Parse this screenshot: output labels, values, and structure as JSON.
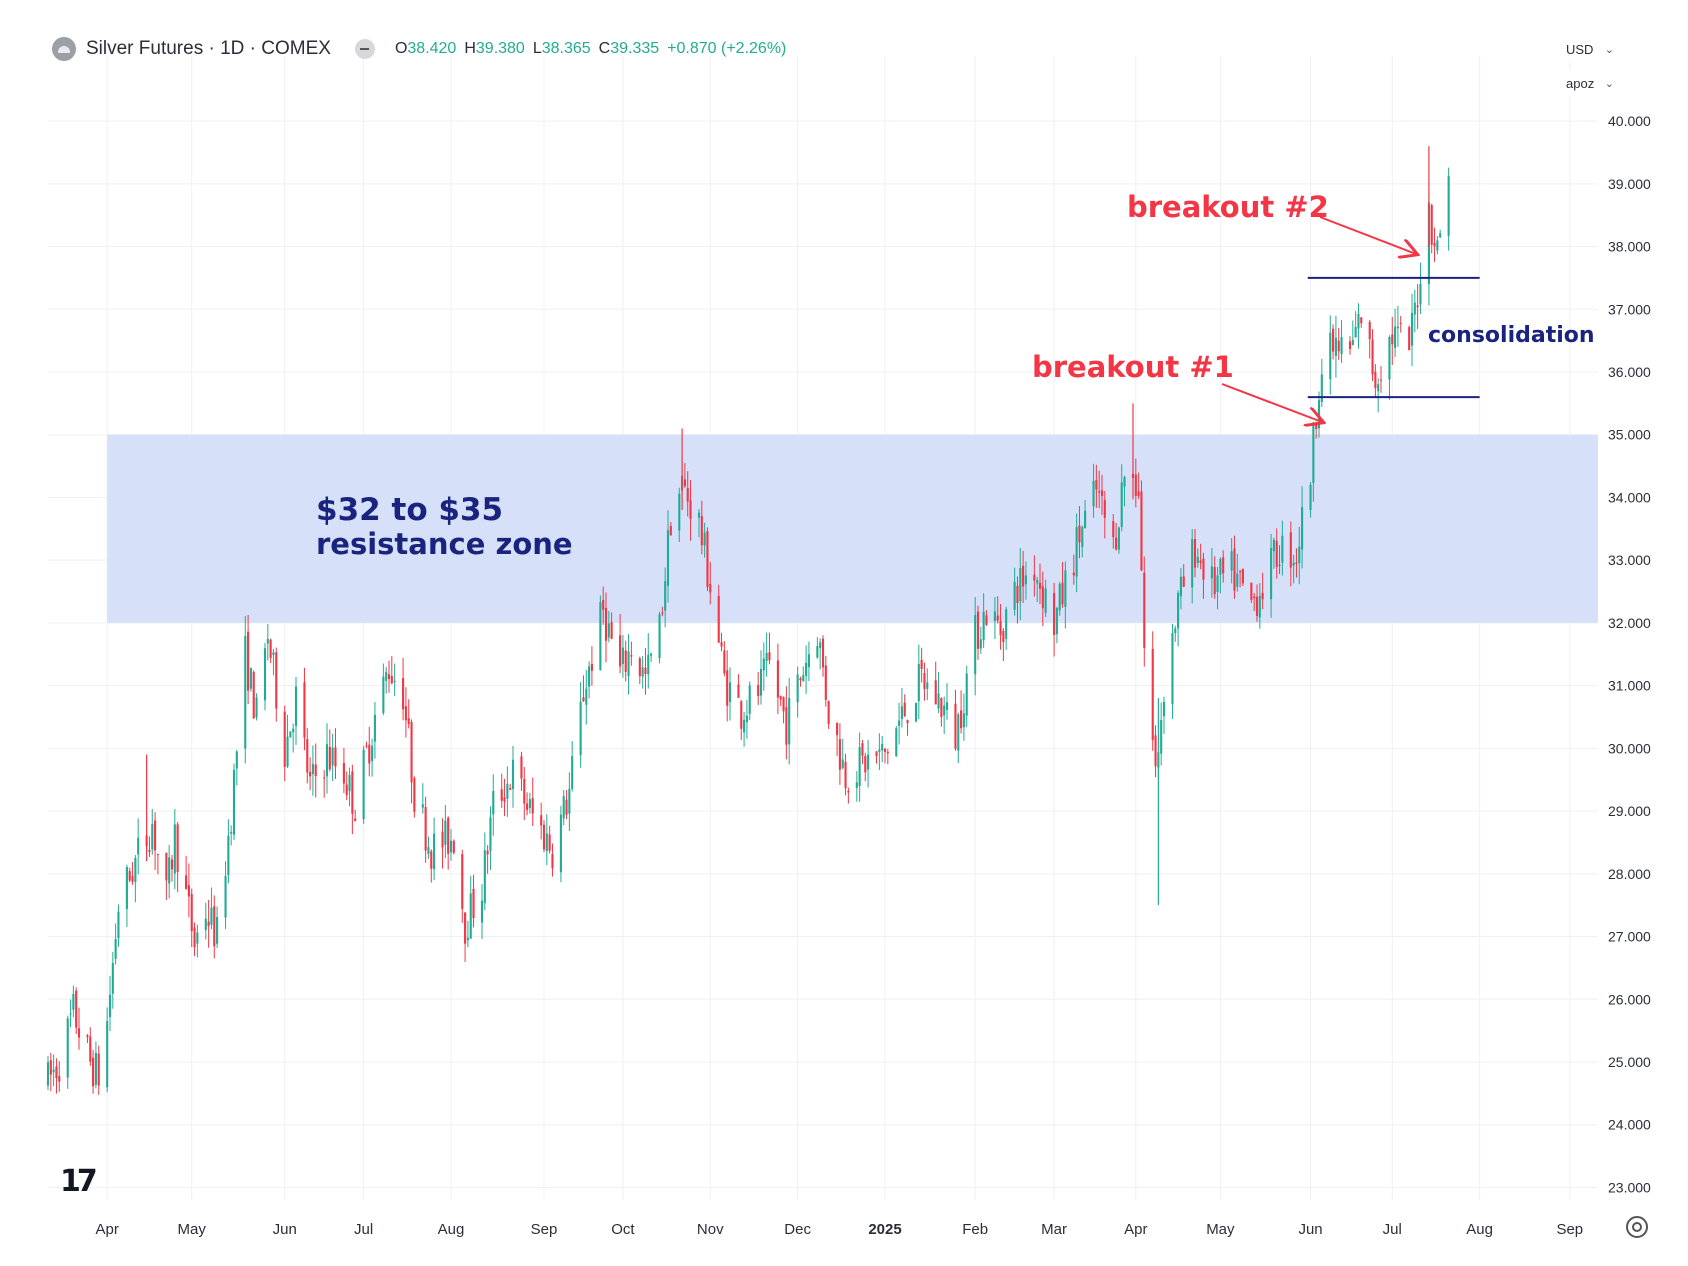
{
  "header": {
    "title": "Silver Futures · 1D · COMEX",
    "ohlc": [
      {
        "label": "O",
        "value": "38.420"
      },
      {
        "label": "H",
        "value": "39.380"
      },
      {
        "label": "L",
        "value": "38.365"
      },
      {
        "label": "C",
        "value": "39.335"
      },
      {
        "label": "",
        "value": "+0.870 (+2.26%)"
      }
    ]
  },
  "controls": {
    "currency": "USD",
    "unit": "apoz"
  },
  "colors": {
    "up": "#22ab94",
    "down": "#f23645",
    "zone": "#d6e0f8",
    "annotation": "#f23645",
    "label": "#1a237e",
    "line": "#1a237e"
  },
  "chart_data": {
    "type": "candlestick",
    "ylim": [
      22.8,
      40.4
    ],
    "y_ticks": [
      40,
      39,
      38,
      37,
      36,
      35,
      34,
      33,
      32,
      31,
      30,
      29,
      28,
      27,
      26,
      25,
      24,
      23
    ],
    "y_tick_labels": [
      "40.000",
      "39.000",
      "38.000",
      "37.000",
      "36.000",
      "35.000",
      "34.000",
      "33.000",
      "32.000",
      "31.000",
      "30.000",
      "29.000",
      "28.000",
      "27.000",
      "26.000",
      "25.000",
      "24.000",
      "23.000"
    ],
    "x_ticks": [
      {
        "label": "Apr",
        "date": "2024-04-01",
        "bold": false
      },
      {
        "label": "May",
        "date": "2024-05-01",
        "bold": false
      },
      {
        "label": "Jun",
        "date": "2024-06-03",
        "bold": false
      },
      {
        "label": "Jul",
        "date": "2024-07-01",
        "bold": false
      },
      {
        "label": "Aug",
        "date": "2024-08-01",
        "bold": false
      },
      {
        "label": "Sep",
        "date": "2024-09-03",
        "bold": false
      },
      {
        "label": "Oct",
        "date": "2024-10-01",
        "bold": false
      },
      {
        "label": "Nov",
        "date": "2024-11-01",
        "bold": false
      },
      {
        "label": "Dec",
        "date": "2024-12-02",
        "bold": false
      },
      {
        "label": "2025",
        "date": "2025-01-02",
        "bold": true
      },
      {
        "label": "Feb",
        "date": "2025-02-03",
        "bold": false
      },
      {
        "label": "Mar",
        "date": "2025-03-03",
        "bold": false
      },
      {
        "label": "Apr",
        "date": "2025-04-01",
        "bold": false
      },
      {
        "label": "May",
        "date": "2025-05-01",
        "bold": false
      },
      {
        "label": "Jun",
        "date": "2025-06-02",
        "bold": false
      },
      {
        "label": "Jul",
        "date": "2025-07-01",
        "bold": false
      },
      {
        "label": "Aug",
        "date": "2025-08-01",
        "bold": false
      },
      {
        "label": "Sep",
        "date": "2025-09-02",
        "bold": false
      }
    ],
    "x_start": "2024-03-11",
    "x_end": "2025-09-12",
    "path": [
      [
        "2024-03-11",
        24.7
      ],
      [
        "2024-03-15",
        25.0
      ],
      [
        "2024-03-20",
        25.8
      ],
      [
        "2024-03-26",
        25.0
      ],
      [
        "2024-03-30",
        24.7
      ],
      [
        "2024-04-05",
        27.5
      ],
      [
        "2024-04-12",
        28.3
      ],
      [
        "2024-04-17",
        28.8
      ],
      [
        "2024-04-22",
        27.6
      ],
      [
        "2024-04-25",
        28.6
      ],
      [
        "2024-05-02",
        26.9
      ],
      [
        "2024-05-06",
        27.4
      ],
      [
        "2024-05-10",
        27.0
      ],
      [
        "2024-05-15",
        29.0
      ],
      [
        "2024-05-20",
        31.5
      ],
      [
        "2024-05-24",
        30.5
      ],
      [
        "2024-05-28",
        31.8
      ],
      [
        "2024-06-03",
        30.0
      ],
      [
        "2024-06-07",
        30.8
      ],
      [
        "2024-06-12",
        29.4
      ],
      [
        "2024-06-18",
        29.9
      ],
      [
        "2024-06-24",
        29.6
      ],
      [
        "2024-06-28",
        29.1
      ],
      [
        "2024-07-05",
        30.5
      ],
      [
        "2024-07-10",
        31.3
      ],
      [
        "2024-07-15",
        30.9
      ],
      [
        "2024-07-19",
        29.3
      ],
      [
        "2024-07-25",
        28.4
      ],
      [
        "2024-08-02",
        28.6
      ],
      [
        "2024-08-06",
        27.2
      ],
      [
        "2024-08-12",
        27.8
      ],
      [
        "2024-08-16",
        29.1
      ],
      [
        "2024-08-23",
        29.6
      ],
      [
        "2024-08-29",
        29.0
      ],
      [
        "2024-09-06",
        28.4
      ],
      [
        "2024-09-12",
        29.3
      ],
      [
        "2024-09-17",
        30.9
      ],
      [
        "2024-09-24",
        32.2
      ],
      [
        "2024-09-30",
        31.2
      ],
      [
        "2024-10-04",
        31.6
      ],
      [
        "2024-10-09",
        31.1
      ],
      [
        "2024-10-14",
        31.9
      ],
      [
        "2024-10-18",
        33.7
      ],
      [
        "2024-10-22",
        34.2
      ],
      [
        "2024-10-28",
        33.6
      ],
      [
        "2024-11-01",
        32.6
      ],
      [
        "2024-11-06",
        31.1
      ],
      [
        "2024-11-12",
        30.6
      ],
      [
        "2024-11-18",
        30.9
      ],
      [
        "2024-11-22",
        31.3
      ],
      [
        "2024-11-28",
        30.4
      ],
      [
        "2024-12-04",
        31.3
      ],
      [
        "2024-12-09",
        31.9
      ],
      [
        "2024-12-13",
        30.6
      ],
      [
        "2024-12-19",
        29.6
      ],
      [
        "2024-12-27",
        29.8
      ],
      [
        "2025-01-02",
        29.9
      ],
      [
        "2025-01-09",
        30.6
      ],
      [
        "2025-01-15",
        31.1
      ],
      [
        "2025-01-22",
        30.7
      ],
      [
        "2025-01-27",
        30.2
      ],
      [
        "2025-02-03",
        31.8
      ],
      [
        "2025-02-07",
        32.2
      ],
      [
        "2025-02-12",
        31.9
      ],
      [
        "2025-02-18",
        32.6
      ],
      [
        "2025-02-24",
        32.9
      ],
      [
        "2025-03-03",
        32.0
      ],
      [
        "2025-03-07",
        32.6
      ],
      [
        "2025-03-12",
        33.4
      ],
      [
        "2025-03-18",
        34.1
      ],
      [
        "2025-03-24",
        33.2
      ],
      [
        "2025-03-28",
        34.4
      ],
      [
        "2025-04-02",
        34.2
      ],
      [
        "2025-04-04",
        31.6
      ],
      [
        "2025-04-08",
        29.6
      ],
      [
        "2025-04-11",
        31.0
      ],
      [
        "2025-04-16",
        32.3
      ],
      [
        "2025-04-22",
        33.2
      ],
      [
        "2025-04-28",
        32.6
      ],
      [
        "2025-05-05",
        32.8
      ],
      [
        "2025-05-12",
        32.3
      ],
      [
        "2025-05-16",
        32.6
      ],
      [
        "2025-05-22",
        33.2
      ],
      [
        "2025-05-28",
        33.1
      ],
      [
        "2025-06-02",
        34.4
      ],
      [
        "2025-06-05",
        35.9
      ],
      [
        "2025-06-10",
        36.4
      ],
      [
        "2025-06-16",
        36.3
      ],
      [
        "2025-06-20",
        36.9
      ],
      [
        "2025-06-25",
        35.9
      ],
      [
        "2025-07-01",
        36.6
      ],
      [
        "2025-07-07",
        36.4
      ],
      [
        "2025-07-10",
        37.3
      ],
      [
        "2025-07-14",
        38.6
      ],
      [
        "2025-07-17",
        37.9
      ],
      [
        "2025-07-21",
        39.3
      ]
    ],
    "zone": {
      "from": 32,
      "to": 35,
      "label_line1": "$32 to $35",
      "label_line2": "resistance zone"
    },
    "consolidation": {
      "upper": 37.5,
      "lower": 35.6,
      "label": "consolidation"
    },
    "annotations": [
      {
        "text": "breakout #1"
      },
      {
        "text": "breakout #2"
      }
    ]
  }
}
